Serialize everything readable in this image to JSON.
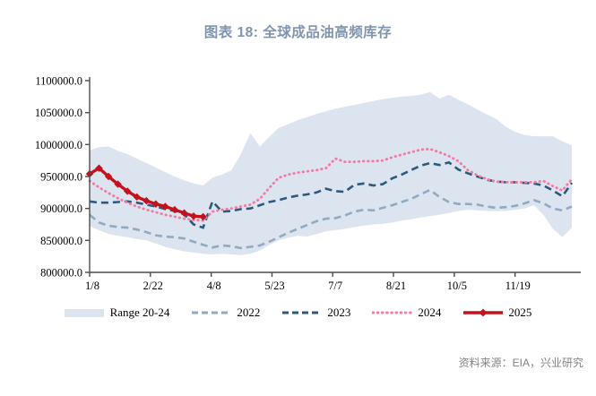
{
  "page": {
    "title": "图表 18: 全球成品油高频库存",
    "source": "资料来源：EIA，兴业研究"
  },
  "chart_data": {
    "type": "line",
    "title": "图表 18: 全球成品油高频库存",
    "ylim": [
      800000,
      1100000
    ],
    "grid": false,
    "legend_position": "bottom",
    "y_ticks": [
      {
        "value": 800000,
        "label": "800000.0"
      },
      {
        "value": 850000,
        "label": "850000.0"
      },
      {
        "value": 900000,
        "label": "900000.0"
      },
      {
        "value": 950000,
        "label": "950000.0"
      },
      {
        "value": 1000000,
        "label": "1000000.0"
      },
      {
        "value": 1050000,
        "label": "1050000.0"
      },
      {
        "value": 1100000,
        "label": "1100000.0"
      }
    ],
    "x_ticks": [
      {
        "label": "1/8",
        "week_index": 0
      },
      {
        "label": "2/22",
        "week_index": 6.43
      },
      {
        "label": "4/8",
        "week_index": 12.86
      },
      {
        "label": "5/23",
        "week_index": 19.29
      },
      {
        "label": "7/7",
        "week_index": 25.71
      },
      {
        "label": "8/21",
        "week_index": 32.14
      },
      {
        "label": "10/5",
        "week_index": 38.57
      },
      {
        "label": "11/19",
        "week_index": 45
      }
    ],
    "n_points": 52,
    "band": {
      "name": "Range 20-24",
      "color": "#DCE4F0",
      "upper": [
        991000,
        996000,
        997000,
        990000,
        985000,
        978000,
        971000,
        964000,
        957000,
        950000,
        944000,
        939000,
        936000,
        948000,
        953000,
        960000,
        985000,
        1018000,
        997000,
        1012000,
        1026000,
        1032000,
        1038000,
        1043000,
        1048000,
        1052000,
        1056000,
        1059000,
        1062000,
        1065000,
        1068000,
        1071000,
        1073000,
        1075000,
        1076000,
        1078000,
        1082000,
        1072000,
        1078000,
        1070000,
        1063000,
        1055000,
        1047000,
        1040000,
        1028000,
        1020000,
        1015000,
        1013000,
        1013000,
        1013000,
        1005000,
        999000
      ],
      "lower": [
        872000,
        866000,
        860000,
        857000,
        855000,
        852000,
        850000,
        845000,
        840000,
        836000,
        833000,
        831000,
        829000,
        828000,
        829000,
        828000,
        827000,
        829000,
        834000,
        843000,
        850000,
        854000,
        857000,
        856000,
        860000,
        864000,
        866000,
        868000,
        871000,
        873000,
        875000,
        876000,
        878000,
        881000,
        883000,
        886000,
        888000,
        890000,
        893000,
        896000,
        898000,
        897000,
        896000,
        896000,
        896000,
        898000,
        900000,
        905000,
        890000,
        868000,
        855000,
        870000
      ]
    },
    "series": [
      {
        "name": "2022",
        "color": "#92AABF",
        "style": "dashed",
        "values": [
          890000,
          878000,
          873000,
          871000,
          870000,
          867000,
          863000,
          858000,
          856000,
          855000,
          853000,
          848000,
          843000,
          839000,
          842000,
          841000,
          838000,
          840000,
          842000,
          848000,
          855000,
          862000,
          868000,
          874000,
          880000,
          884000,
          885000,
          889000,
          895000,
          898000,
          897000,
          901000,
          905000,
          910000,
          915000,
          922000,
          929000,
          918000,
          910000,
          907000,
          907000,
          906000,
          903000,
          901000,
          902000,
          904000,
          908000,
          913000,
          908000,
          900000,
          897000,
          903000
        ]
      },
      {
        "name": "2023",
        "color": "#2D5A7B",
        "style": "dashed",
        "values": [
          911000,
          909000,
          909000,
          910000,
          911000,
          909000,
          906000,
          903000,
          899000,
          896000,
          891000,
          875000,
          870000,
          911000,
          895000,
          896000,
          899000,
          900000,
          905000,
          910000,
          913000,
          917000,
          920000,
          922000,
          925000,
          931000,
          927000,
          926000,
          937000,
          939000,
          936000,
          938000,
          947000,
          953000,
          960000,
          967000,
          971000,
          968000,
          972000,
          961000,
          955000,
          950000,
          945000,
          942000,
          941000,
          941000,
          940000,
          939000,
          936000,
          928000,
          919000,
          940000
        ]
      },
      {
        "name": "2024",
        "color": "#F47A9F",
        "style": "dotted",
        "values": [
          943000,
          933000,
          924000,
          916000,
          909000,
          903000,
          898000,
          894000,
          890000,
          887000,
          884000,
          882000,
          881000,
          895000,
          898000,
          900000,
          903000,
          906000,
          915000,
          932000,
          948000,
          953000,
          956000,
          958000,
          960000,
          963000,
          978000,
          973000,
          973000,
          974000,
          974000,
          975000,
          980000,
          984000,
          988000,
          992000,
          993000,
          988000,
          982000,
          974000,
          960000,
          952000,
          946000,
          942000,
          941000,
          941000,
          941000,
          941000,
          943000,
          935000,
          928000,
          946000
        ]
      },
      {
        "name": "2025",
        "color": "#C3121B",
        "style": "solid-diamond",
        "values": [
          954000,
          963000,
          950000,
          938000,
          927000,
          918000,
          912000,
          907000,
          903000,
          898000,
          893000,
          888000,
          887000
        ]
      }
    ]
  }
}
